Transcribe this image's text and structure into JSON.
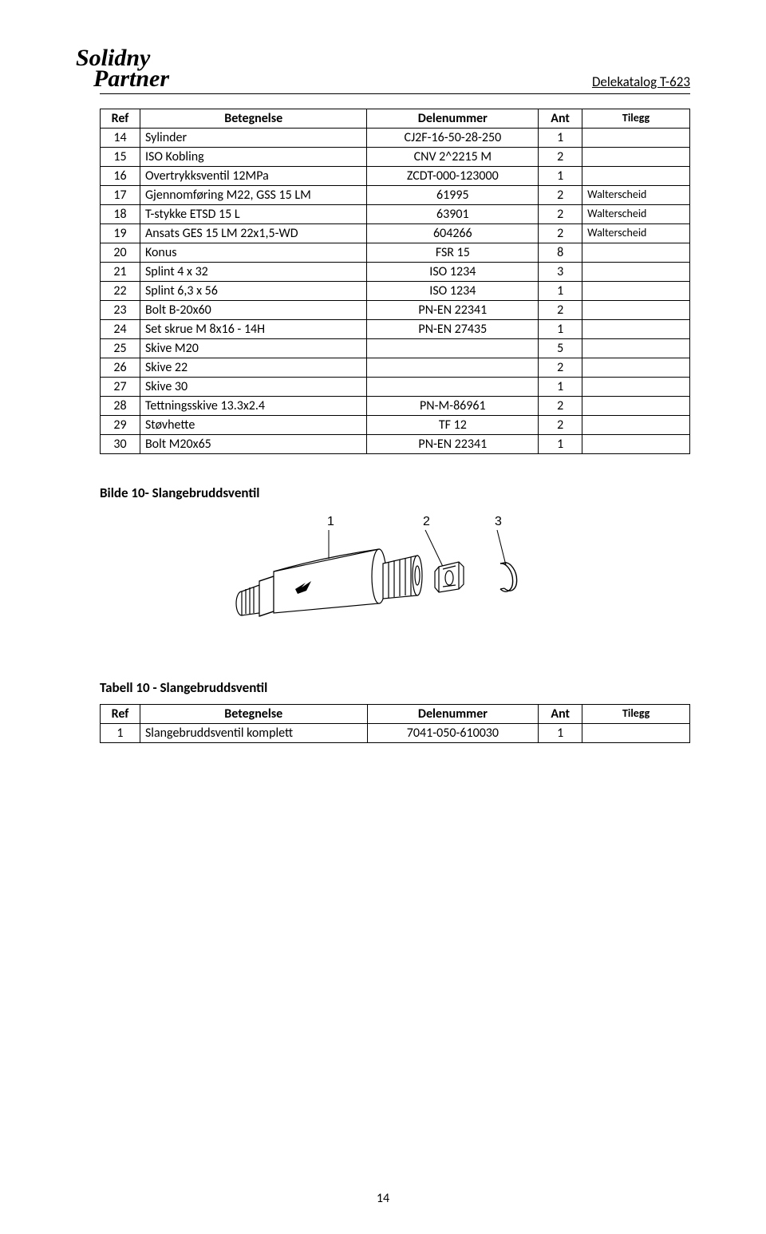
{
  "header": {
    "logo_line1": "Solidny",
    "logo_line2": "Partner",
    "doc_title": "Delekatalog T-623"
  },
  "table1": {
    "columns": [
      "Ref",
      "Betegnelse",
      "Delenummer",
      "Ant",
      "Tilegg"
    ],
    "rows": [
      [
        "14",
        "Sylinder",
        "CJ2F-16-50-28-250",
        "1",
        ""
      ],
      [
        "15",
        "ISO Kobling",
        "CNV 2^2215 M",
        "2",
        ""
      ],
      [
        "16",
        "Overtrykksventil 12MPa",
        "ZCDT-000-123000",
        "1",
        ""
      ],
      [
        "17",
        "Gjennomføring M22, GSS 15 LM",
        "61995",
        "2",
        "Walterscheid"
      ],
      [
        "18",
        "T-stykke ETSD 15 L",
        "63901",
        "2",
        "Walterscheid"
      ],
      [
        "19",
        "Ansats GES 15 LM 22x1,5-WD",
        "604266",
        "2",
        "Walterscheid"
      ],
      [
        "20",
        "Konus",
        "FSR 15",
        "8",
        ""
      ],
      [
        "21",
        "Splint 4 x 32",
        "ISO 1234",
        "3",
        ""
      ],
      [
        "22",
        "Splint 6,3 x 56",
        "ISO 1234",
        "1",
        ""
      ],
      [
        "23",
        "Bolt B-20x60",
        "PN-EN 22341",
        "2",
        ""
      ],
      [
        "24",
        "Set skrue M 8x16 - 14H",
        "PN-EN 27435",
        "1",
        ""
      ],
      [
        "25",
        "Skive M20",
        "",
        "5",
        ""
      ],
      [
        "26",
        "Skive 22",
        "",
        "2",
        ""
      ],
      [
        "27",
        "Skive 30",
        "",
        "1",
        ""
      ],
      [
        "28",
        "Tettningsskive 13.3x2.4",
        "PN-M-86961",
        "2",
        ""
      ],
      [
        "29",
        "Støvhette",
        "TF 12",
        "2",
        ""
      ],
      [
        "30",
        "Bolt M20x65",
        "PN-EN 22341",
        "1",
        ""
      ]
    ]
  },
  "section_bilde_title": "Bilde 10- Slangebruddsventil",
  "diagram": {
    "labels": [
      "1",
      "2",
      "3"
    ],
    "label_fontsize": 16
  },
  "section_tabell_title": "Tabell 10 - Slangebruddsventil",
  "table2": {
    "columns": [
      "Ref",
      "Betegnelse",
      "Delenummer",
      "Ant",
      "Tilegg"
    ],
    "rows": [
      [
        "1",
        "Slangebruddsventil komplett",
        "7041-050-610030",
        "1",
        ""
      ]
    ]
  },
  "page_number": "14"
}
